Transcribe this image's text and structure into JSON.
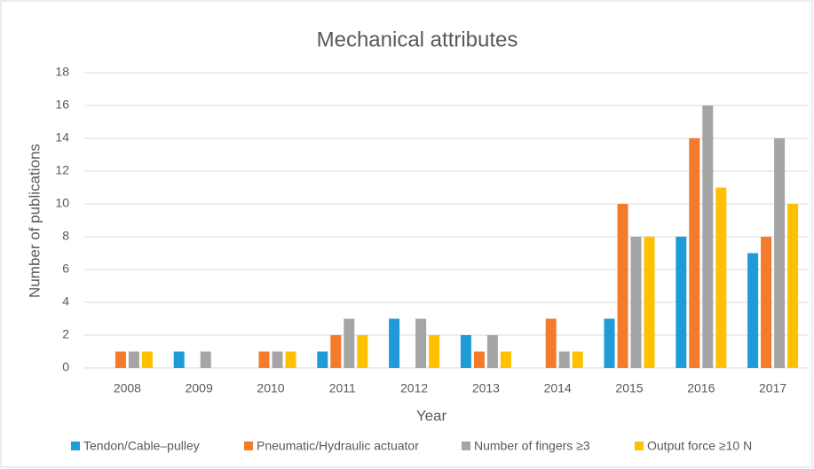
{
  "chart_data": {
    "type": "bar",
    "title": "Mechanical attributes",
    "x_label": "Year",
    "y_label": "Number of publications",
    "categories": [
      "2008",
      "2009",
      "2010",
      "2011",
      "2012",
      "2013",
      "2014",
      "2015",
      "2016",
      "2017"
    ],
    "series": [
      {
        "name": "Tendon/Cable–pulley",
        "color": "#1f9bd7",
        "values": [
          0,
          1,
          0,
          1,
          3,
          2,
          0,
          3,
          8,
          7
        ]
      },
      {
        "name": "Pneumatic/Hydraulic actuator",
        "color": "#f47a2c",
        "values": [
          1,
          0,
          1,
          2,
          0,
          1,
          3,
          10,
          14,
          8
        ]
      },
      {
        "name": "Number of fingers ≥3",
        "color": "#a5a5a5",
        "values": [
          1,
          1,
          1,
          3,
          3,
          2,
          1,
          8,
          16,
          14
        ]
      },
      {
        "name": "Output force ≥10 N",
        "color": "#ffc000",
        "values": [
          1,
          0,
          1,
          2,
          2,
          1,
          1,
          8,
          11,
          10
        ]
      }
    ],
    "ylim": [
      0,
      18
    ],
    "yticks": [
      0,
      2,
      4,
      6,
      8,
      10,
      12,
      14,
      16,
      18
    ],
    "grid": true,
    "legend": "bottom"
  }
}
